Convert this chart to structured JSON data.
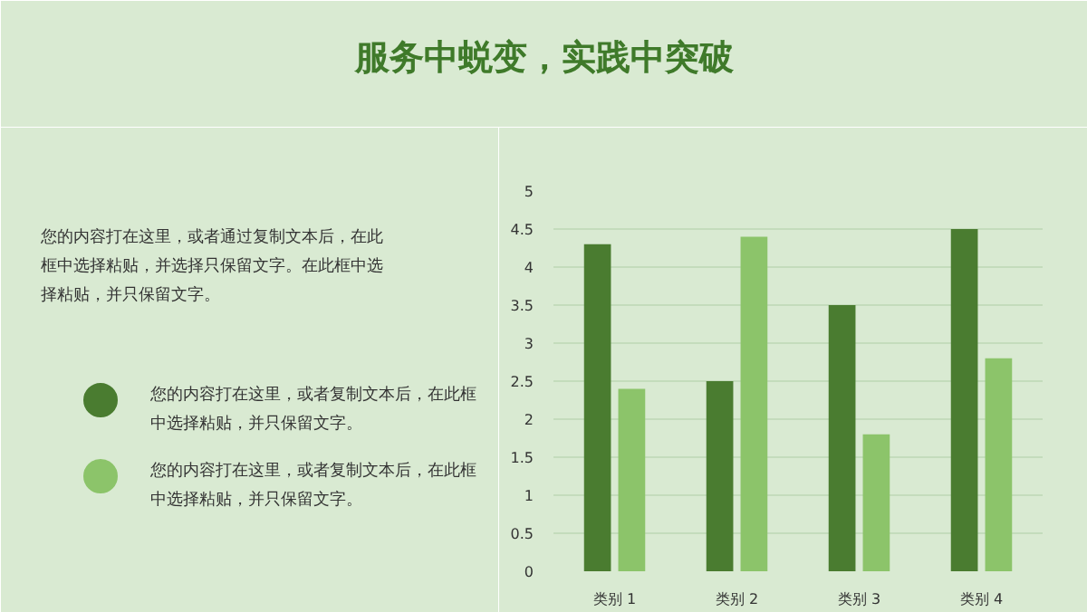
{
  "chart_data": {
    "type": "bar",
    "title": "服务中蜕变，实践中突破",
    "categories": [
      "类别 1",
      "类别 2",
      "类别 3",
      "类别 4"
    ],
    "series": [
      {
        "name": "您的内容打在这里，或者复制文本后，在此框中选择粘贴，并只保留文字。",
        "color": "#4a7c30",
        "values": [
          4.3,
          2.5,
          3.5,
          4.5
        ]
      },
      {
        "name": "您的内容打在这里，或者复制文本后，在此框中选择粘贴，并只保留文字。",
        "color": "#8cc46a",
        "values": [
          2.4,
          4.4,
          1.8,
          2.8
        ]
      }
    ],
    "ylim": [
      0,
      5
    ],
    "yticks": [
      0,
      0.5,
      1,
      1.5,
      2,
      2.5,
      3,
      3.5,
      4,
      4.5,
      5
    ],
    "grid": "y",
    "legend": "left",
    "annotations": [
      "您的内容打在这里，或者通过复制文本后，在此框中选择粘贴，并选择只保留文字。在此框中选择粘贴，并只保留文字。"
    ]
  }
}
